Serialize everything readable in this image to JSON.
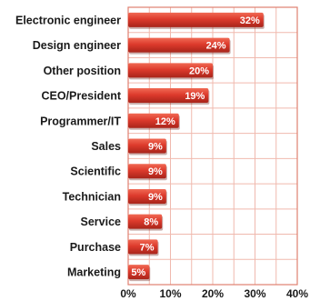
{
  "chart_data": {
    "type": "bar",
    "orientation": "horizontal",
    "categories": [
      "Electronic engineer",
      "Design engineer",
      "Other position",
      "CEO/President",
      "Programmer/IT",
      "Sales",
      "Scientific",
      "Technician",
      "Service",
      "Purchase",
      "Marketing"
    ],
    "values": [
      32,
      24,
      20,
      19,
      12,
      9,
      9,
      9,
      8,
      7,
      5
    ],
    "data_labels": [
      "32%",
      "24%",
      "20%",
      "19%",
      "12%",
      "9%",
      "9%",
      "9%",
      "8%",
      "7%",
      "5%"
    ],
    "xlim": [
      0,
      40
    ],
    "x_ticks": [
      0,
      10,
      20,
      30,
      40
    ],
    "x_tick_labels": [
      "0%",
      "10%",
      "20%",
      "30%",
      "40%"
    ],
    "grid": true,
    "colors": {
      "bar": "#dd3a2c",
      "bar_light": "#f06a55",
      "bar_dark": "#a8241a",
      "grid": "#f0b9ae",
      "frame": "#e08070"
    }
  }
}
